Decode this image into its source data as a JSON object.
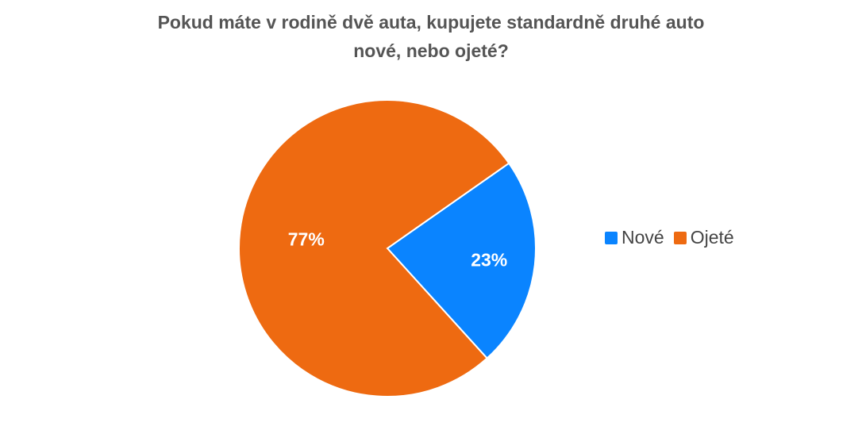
{
  "chart_data": {
    "type": "pie",
    "title_lines": [
      "Pokud máte v rodině dvě auta, kupujete standardně druhé auto",
      "nové, nebo ojeté?"
    ],
    "categories": [
      "Nové",
      "Ojeté"
    ],
    "values": [
      23,
      77
    ],
    "value_labels": [
      "23%",
      "77%"
    ],
    "colors": [
      "#0A84FF",
      "#EE6A11"
    ],
    "start_angle_deg": -35,
    "legend_position": "right"
  }
}
